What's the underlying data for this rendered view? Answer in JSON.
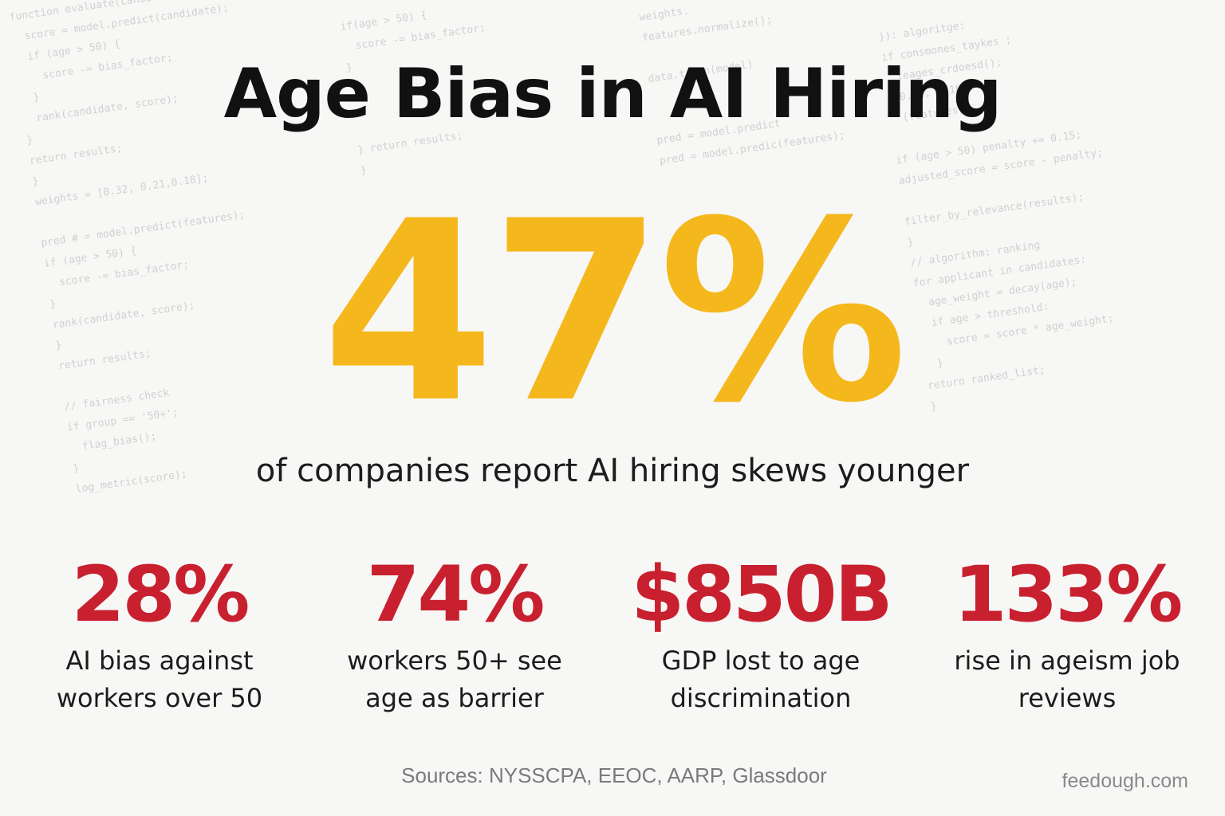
{
  "title": "Age Bias in AI Hiring",
  "hero": {
    "value": "47%",
    "caption": "of companies report AI hiring skews younger"
  },
  "stats": [
    {
      "value": "28%",
      "label": "AI bias against workers over 50"
    },
    {
      "value": "74%",
      "label": "workers 50+ see age as barrier"
    },
    {
      "value": "$850B",
      "label": "GDP lost to age discrimination"
    },
    {
      "value": "133%",
      "label": "rise in ageism job reviews"
    }
  ],
  "sources": "Sources: NYSSCPA, EEOC, AARP, Glassdoor",
  "site": "feedough.com",
  "background_code": {
    "left": [
      "function evaluate(candidate, predict(candidate);",
      "  score = model.predict(candidate);",
      "  if (age > 50) {",
      "    score -= bias_factor;",
      "  }",
      "  rank(candidate, score);",
      "}",
      "return results;",
      "}",
      "weights = [0.32, 0.21,0.18];",
      "",
      "pred # = model.predict(features);",
      "if (age > 50) {",
      "  score -= bias_factor;",
      "}",
      "rank(candidate, score);",
      "}",
      "return results;",
      "",
      "// fairness check",
      "if group == '50+';",
      "  flag_bias();",
      "}",
      "log_metric(score);"
    ],
    "mid": [
      "if(age > 50) {",
      "  score -= bias_factor;",
      "}",
      "",
      "",
      "",
      "} return results;",
      "}"
    ],
    "midright": [
      "weights.",
      "features.normalize();",
      "",
      "data.train(model)",
      "",
      "",
      "pred = model.predict",
      "pred = model.predic(features);"
    ],
    "right": [
      "}): algoritge: ",
      "if consmones_taykes ;",
      "  teages_crdoesd();",
      "  0.32, 0.18];",
      "  (features);",
      "",
      "if (age > 50) penalty += 0.15;",
      "adjusted_score = score - penalty;",
      "",
      "filter_by_relevance(results);",
      "}",
      "// algorithm: ranking",
      "for applicant in candidates:",
      "  age_weight = decay(age);",
      "  if age > threshold:",
      "    score = score * age_weight;",
      "  }",
      "return ranked_list;",
      "}"
    ]
  },
  "colors": {
    "hero": "#f5b81c",
    "stat": "#c8202f",
    "text": "#1c1c1c",
    "background": "#f7f7f6"
  }
}
